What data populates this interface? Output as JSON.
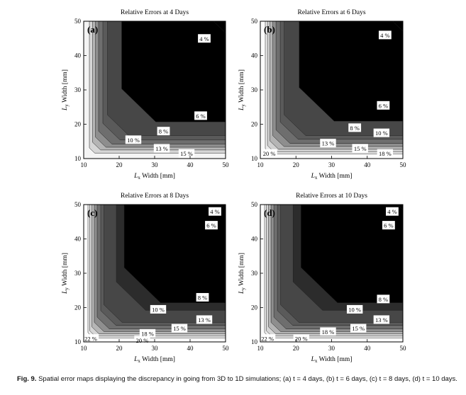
{
  "chart_data": [
    {
      "type": "contour",
      "panel_label": "(a)",
      "title": "Relative Errors at 4 Days",
      "xlabel_var": "L",
      "xlabel_sub": "x",
      "xlabel_rest": " Width [mm]",
      "ylabel_var": "L",
      "ylabel_sub": "y",
      "ylabel_rest": " Width [mm]",
      "xlim": [
        10,
        50
      ],
      "ylim": [
        10,
        50
      ],
      "xticks": [
        10,
        20,
        30,
        40,
        50
      ],
      "yticks": [
        10,
        20,
        30,
        40,
        50
      ],
      "levels": [
        {
          "label": "4 %",
          "d": 1.3,
          "color": "#000000",
          "label_x": 44.0,
          "label_y": 45.0
        },
        {
          "label": "6 %",
          "d": 5.3,
          "color": "#474747",
          "label_x": 43.0,
          "label_y": 22.5
        },
        {
          "label": "8 %",
          "d": 6.6,
          "color": "#5a5a5a",
          "label_x": 32.5,
          "label_y": 18.0
        },
        {
          "label": "10 %",
          "d": 7.8,
          "color": "#6e6e6e",
          "label_x": 24.0,
          "label_y": 15.5
        },
        {
          "label": "13 %",
          "d": 8.7,
          "color": "#8e8e8e",
          "label_x": 32.0,
          "label_y": 13.0
        },
        {
          "label": "15 %",
          "d": 9.5,
          "color": "#b5b5b5",
          "label_x": 39.0,
          "label_y": 11.5
        },
        {
          "label": "",
          "d": 10.4,
          "color": "#d6d6d6",
          "label_x": null,
          "label_y": null
        }
      ],
      "background_color": "#f4f4f4"
    },
    {
      "type": "contour",
      "panel_label": "(b)",
      "title": "Relative Errors at 6 Days",
      "xlabel_var": "L",
      "xlabel_sub": "x",
      "xlabel_rest": " Width [mm]",
      "ylabel_var": "L",
      "ylabel_sub": "y",
      "ylabel_rest": " Width [mm]",
      "xlim": [
        10,
        50
      ],
      "ylim": [
        10,
        50
      ],
      "xticks": [
        10,
        20,
        30,
        40,
        50
      ],
      "yticks": [
        10,
        20,
        30,
        40,
        50
      ],
      "levels": [
        {
          "label": "4 %",
          "d": 1.1,
          "color": "#000000",
          "label_x": 45.0,
          "label_y": 46.0
        },
        {
          "label": "6 %",
          "d": 5.3,
          "color": "#474747",
          "label_x": 44.5,
          "label_y": 25.5
        },
        {
          "label": "8 %",
          "d": 6.4,
          "color": "#5a5a5a",
          "label_x": 36.5,
          "label_y": 19.0
        },
        {
          "label": "10 %",
          "d": 7.6,
          "color": "#6e6e6e",
          "label_x": 44.0,
          "label_y": 17.5
        },
        {
          "label": "13 %",
          "d": 8.5,
          "color": "#8e8e8e",
          "label_x": 29.0,
          "label_y": 14.5
        },
        {
          "label": "15 %",
          "d": 9.3,
          "color": "#b5b5b5",
          "label_x": 38.0,
          "label_y": 13.0
        },
        {
          "label": "18 %",
          "d": 10.0,
          "color": "#d2d2d2",
          "label_x": 45.0,
          "label_y": 11.5
        },
        {
          "label": "20 %",
          "d": 10.6,
          "color": "#ebebeb",
          "label_x": 12.5,
          "label_y": 11.5
        }
      ],
      "background_color": "#fbfbfb"
    },
    {
      "type": "contour",
      "panel_label": "(c)",
      "title": "Relative Errors at 8 Days",
      "xlabel_var": "L",
      "xlabel_sub": "x",
      "xlabel_rest": " Width [mm]",
      "ylabel_var": "L",
      "ylabel_sub": "y",
      "ylabel_rest": " Width [mm]",
      "xlim": [
        10,
        50
      ],
      "ylim": [
        10,
        50
      ],
      "xticks": [
        10,
        20,
        30,
        40,
        50
      ],
      "yticks": [
        10,
        20,
        30,
        40,
        50
      ],
      "levels": [
        {
          "label": "4 %",
          "d": 0.6,
          "color": "#000000",
          "label_x": 47.0,
          "label_y": 48.0
        },
        {
          "label": "6 %",
          "d": 2.8,
          "color": "#2c2c2c",
          "label_x": 46.0,
          "label_y": 44.0
        },
        {
          "label": "8 %",
          "d": 6.3,
          "color": "#474747",
          "label_x": 43.5,
          "label_y": 23.0
        },
        {
          "label": "10 %",
          "d": 7.2,
          "color": "#5a5a5a",
          "label_x": 31.0,
          "label_y": 19.5
        },
        {
          "label": "13 %",
          "d": 8.2,
          "color": "#6e6e6e",
          "label_x": 44.0,
          "label_y": 16.5
        },
        {
          "label": "15 %",
          "d": 9.0,
          "color": "#8e8e8e",
          "label_x": 37.0,
          "label_y": 14.0
        },
        {
          "label": "18 %",
          "d": 9.7,
          "color": "#b5b5b5",
          "label_x": 28.0,
          "label_y": 12.5
        },
        {
          "label": "20 %",
          "d": 10.3,
          "color": "#d6d6d6",
          "label_x": 26.5,
          "label_y": 10.5
        },
        {
          "label": "22 %",
          "d": 10.8,
          "color": "#ececec",
          "label_x": 12.0,
          "label_y": 11.0
        }
      ],
      "background_color": "#fbfbfb"
    },
    {
      "type": "contour",
      "panel_label": "(d)",
      "title": "Relative Errors at 10 Days",
      "xlabel_var": "L",
      "xlabel_sub": "x",
      "xlabel_rest": " Width [mm]",
      "ylabel_var": "L",
      "ylabel_sub": "y",
      "ylabel_rest": " Width [mm]",
      "xlim": [
        10,
        50
      ],
      "ylim": [
        10,
        50
      ],
      "xticks": [
        10,
        20,
        30,
        40,
        50
      ],
      "yticks": [
        10,
        20,
        30,
        40,
        50
      ],
      "levels": [
        {
          "label": "4 %",
          "d": 0.6,
          "color": "#000000",
          "label_x": 47.0,
          "label_y": 48.0
        },
        {
          "label": "6 %",
          "d": 2.8,
          "color": "#2c2c2c",
          "label_x": 46.0,
          "label_y": 44.0
        },
        {
          "label": "8 %",
          "d": 6.3,
          "color": "#474747",
          "label_x": 44.5,
          "label_y": 22.5
        },
        {
          "label": "10 %",
          "d": 7.2,
          "color": "#5a5a5a",
          "label_x": 36.5,
          "label_y": 19.5
        },
        {
          "label": "13 %",
          "d": 8.2,
          "color": "#6e6e6e",
          "label_x": 44.0,
          "label_y": 16.5
        },
        {
          "label": "15 %",
          "d": 9.0,
          "color": "#8e8e8e",
          "label_x": 37.5,
          "label_y": 14.0
        },
        {
          "label": "18 %",
          "d": 9.7,
          "color": "#b5b5b5",
          "label_x": 29.0,
          "label_y": 13.0
        },
        {
          "label": "20 %",
          "d": 10.3,
          "color": "#d6d6d6",
          "label_x": 21.5,
          "label_y": 11.0
        },
        {
          "label": "22 %",
          "d": 10.8,
          "color": "#ececec",
          "label_x": 12.0,
          "label_y": 11.0
        }
      ],
      "background_color": "#fbfbfb"
    }
  ],
  "caption": {
    "label": "Fig. 9.",
    "text": "Spatial error maps displaying the discrepancy in going from 3D to 1D simulations; (a) t = 4 days, (b) t = 6 days, (c) t = 8 days, (d) t = 10 days."
  }
}
